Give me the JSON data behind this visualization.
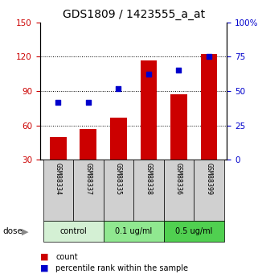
{
  "title": "GDS1809 / 1423555_a_at",
  "samples": [
    "GSM88334",
    "GSM88337",
    "GSM88335",
    "GSM88338",
    "GSM88336",
    "GSM88399"
  ],
  "counts": [
    50,
    57,
    67,
    117,
    87,
    122
  ],
  "percentiles": [
    42,
    42,
    52,
    62,
    65,
    75
  ],
  "ylim_left": [
    30,
    150
  ],
  "ylim_right": [
    0,
    100
  ],
  "yticks_left": [
    30,
    60,
    90,
    120,
    150
  ],
  "yticks_right": [
    0,
    25,
    50,
    75,
    100
  ],
  "yticklabels_right": [
    "0",
    "25",
    "50",
    "75",
    "100%"
  ],
  "bar_color": "#cc0000",
  "dot_color": "#0000cc",
  "groups": [
    {
      "label": "control",
      "indices": [
        0,
        1
      ],
      "color": "#d4f0d4"
    },
    {
      "label": "0.1 ug/ml",
      "indices": [
        2,
        3
      ],
      "color": "#90e890"
    },
    {
      "label": "0.5 ug/ml",
      "indices": [
        4,
        5
      ],
      "color": "#50d050"
    }
  ],
  "dose_label": "dose",
  "legend_count": "count",
  "legend_percentile": "percentile rank within the sample",
  "title_fontsize": 10,
  "tick_fontsize": 7.5,
  "bar_width": 0.55,
  "background_plot": "#ffffff",
  "background_label": "#d0d0d0"
}
